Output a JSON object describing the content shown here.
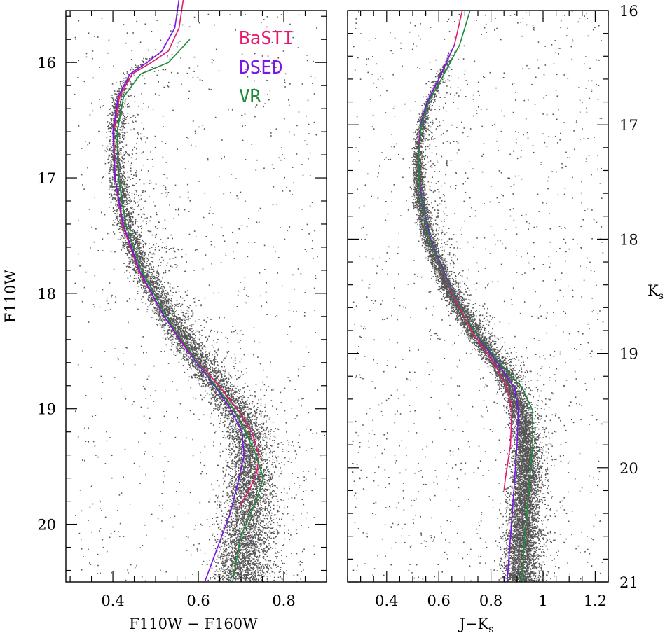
{
  "chart_data": [
    {
      "type": "scatter",
      "panel": "left",
      "xlabel": "F110W − F160W",
      "ylabel": "F110W",
      "xlim": [
        0.29,
        0.9
      ],
      "ylim": [
        20.5,
        15.55
      ],
      "y_inverted": true,
      "x_ticks": [
        0.4,
        0.6,
        0.8
      ],
      "x_tick_labels": [
        "0.4",
        "0.6",
        "0.8"
      ],
      "y_ticks": [
        16,
        17,
        18,
        19,
        20
      ],
      "y_tick_labels": [
        "16",
        "17",
        "18",
        "19",
        "20"
      ],
      "legend": {
        "placement": "top-right",
        "entries": [
          {
            "label": "BaSTI",
            "color": "#e8196e"
          },
          {
            "label": "DSED",
            "color": "#7b16e8"
          },
          {
            "label": "VR",
            "color": "#1f8a3a"
          }
        ]
      },
      "scatter_color": "#555555",
      "ridge_line": {
        "y": [
          15.5,
          15.7,
          15.9,
          16.0,
          16.1,
          16.3,
          16.6,
          17.0,
          17.4,
          17.8,
          18.2,
          18.5,
          18.8,
          19.0,
          19.2,
          19.5,
          19.8,
          20.2,
          20.5
        ],
        "x": [
          0.57,
          0.545,
          0.505,
          0.475,
          0.438,
          0.415,
          0.405,
          0.41,
          0.43,
          0.47,
          0.53,
          0.585,
          0.645,
          0.685,
          0.712,
          0.72,
          0.715,
          0.705,
          0.7
        ]
      },
      "series": [
        {
          "name": "BaSTI",
          "color": "#e8196e",
          "y": [
            15.45,
            15.7,
            15.9,
            16.0,
            16.1,
            16.3,
            16.6,
            17.0,
            17.4,
            17.8,
            18.2,
            18.5,
            18.8,
            19.0,
            19.2,
            19.4,
            19.55,
            19.7,
            19.85
          ],
          "x": [
            0.565,
            0.555,
            0.53,
            0.49,
            0.445,
            0.415,
            0.402,
            0.405,
            0.422,
            0.46,
            0.52,
            0.578,
            0.648,
            0.69,
            0.725,
            0.742,
            0.737,
            0.72,
            0.695
          ]
        },
        {
          "name": "DSED",
          "color": "#7b16e8",
          "y": [
            15.45,
            15.7,
            15.9,
            16.0,
            16.1,
            16.3,
            16.6,
            17.0,
            17.4,
            17.8,
            18.2,
            18.5,
            18.8,
            19.0,
            19.2,
            19.4,
            19.6,
            19.9,
            20.2,
            20.5
          ],
          "x": [
            0.555,
            0.545,
            0.515,
            0.48,
            0.44,
            0.412,
            0.4,
            0.405,
            0.424,
            0.462,
            0.52,
            0.575,
            0.638,
            0.675,
            0.702,
            0.707,
            0.695,
            0.675,
            0.645,
            0.615
          ]
        },
        {
          "name": "VR",
          "color": "#1f8a3a",
          "y": [
            15.8,
            16.0,
            16.1,
            16.3,
            16.6,
            17.0,
            17.4,
            17.8,
            18.2,
            18.5,
            18.8,
            19.0,
            19.2,
            19.4,
            19.6,
            19.8,
            20.1,
            20.5
          ],
          "x": [
            0.58,
            0.53,
            0.465,
            0.425,
            0.41,
            0.413,
            0.43,
            0.467,
            0.525,
            0.58,
            0.64,
            0.682,
            0.71,
            0.735,
            0.752,
            0.735,
            0.7,
            0.68
          ]
        }
      ]
    },
    {
      "type": "scatter",
      "panel": "right",
      "xlabel": "J−K",
      "xlabel_subscript": "s",
      "ylabel": "K",
      "ylabel_subscript": "s",
      "xlim": [
        0.25,
        1.25
      ],
      "ylim": [
        21,
        16
      ],
      "y_inverted": true,
      "y_axis_position": "right",
      "x_ticks": [
        0.4,
        0.6,
        0.8,
        1.0,
        1.2
      ],
      "x_tick_labels": [
        "0.4",
        "0.6",
        "0.8",
        "1",
        "1.2"
      ],
      "y_ticks": [
        16,
        17,
        18,
        19,
        20,
        21
      ],
      "y_tick_labels": [
        "16",
        "17",
        "18",
        "19",
        "20",
        "21"
      ],
      "scatter_color": "#555555",
      "ridge_line": {
        "y": [
          16.0,
          16.3,
          16.6,
          16.9,
          17.2,
          17.6,
          18.0,
          18.4,
          18.8,
          19.1,
          19.4,
          19.7,
          20.0,
          20.4,
          20.8,
          21.0
        ],
        "x": [
          0.7,
          0.66,
          0.6,
          0.545,
          0.52,
          0.525,
          0.56,
          0.63,
          0.73,
          0.83,
          0.9,
          0.93,
          0.935,
          0.925,
          0.915,
          0.91
        ]
      },
      "series": [
        {
          "name": "BaSTI",
          "color": "#e8196e",
          "y": [
            16.0,
            16.3,
            16.6,
            16.8,
            17.0,
            17.3,
            17.6,
            18.0,
            18.4,
            18.8,
            19.1,
            19.3,
            19.5,
            19.8,
            20.1,
            20.2
          ],
          "x": [
            0.69,
            0.66,
            0.6,
            0.555,
            0.53,
            0.52,
            0.53,
            0.565,
            0.635,
            0.725,
            0.815,
            0.862,
            0.88,
            0.875,
            0.855,
            0.85
          ]
        },
        {
          "name": "DSED",
          "color": "#7b16e8",
          "y": [
            16.3,
            16.6,
            16.8,
            17.0,
            17.3,
            17.6,
            18.0,
            18.4,
            18.8,
            19.1,
            19.3,
            19.5,
            19.8,
            20.2,
            20.6,
            21.0
          ],
          "x": [
            0.66,
            0.6,
            0.555,
            0.53,
            0.522,
            0.53,
            0.568,
            0.64,
            0.735,
            0.83,
            0.89,
            0.905,
            0.9,
            0.888,
            0.875,
            0.862
          ]
        },
        {
          "name": "VR",
          "color": "#1f8a3a",
          "y": [
            16.0,
            16.3,
            16.6,
            16.8,
            17.0,
            17.3,
            17.6,
            18.0,
            18.4,
            18.8,
            19.1,
            19.3,
            19.5,
            19.8,
            20.2,
            20.6,
            21.0
          ],
          "x": [
            0.72,
            0.68,
            0.61,
            0.56,
            0.533,
            0.522,
            0.528,
            0.565,
            0.637,
            0.735,
            0.84,
            0.92,
            0.96,
            0.96,
            0.945,
            0.93,
            0.918
          ]
        }
      ]
    }
  ]
}
